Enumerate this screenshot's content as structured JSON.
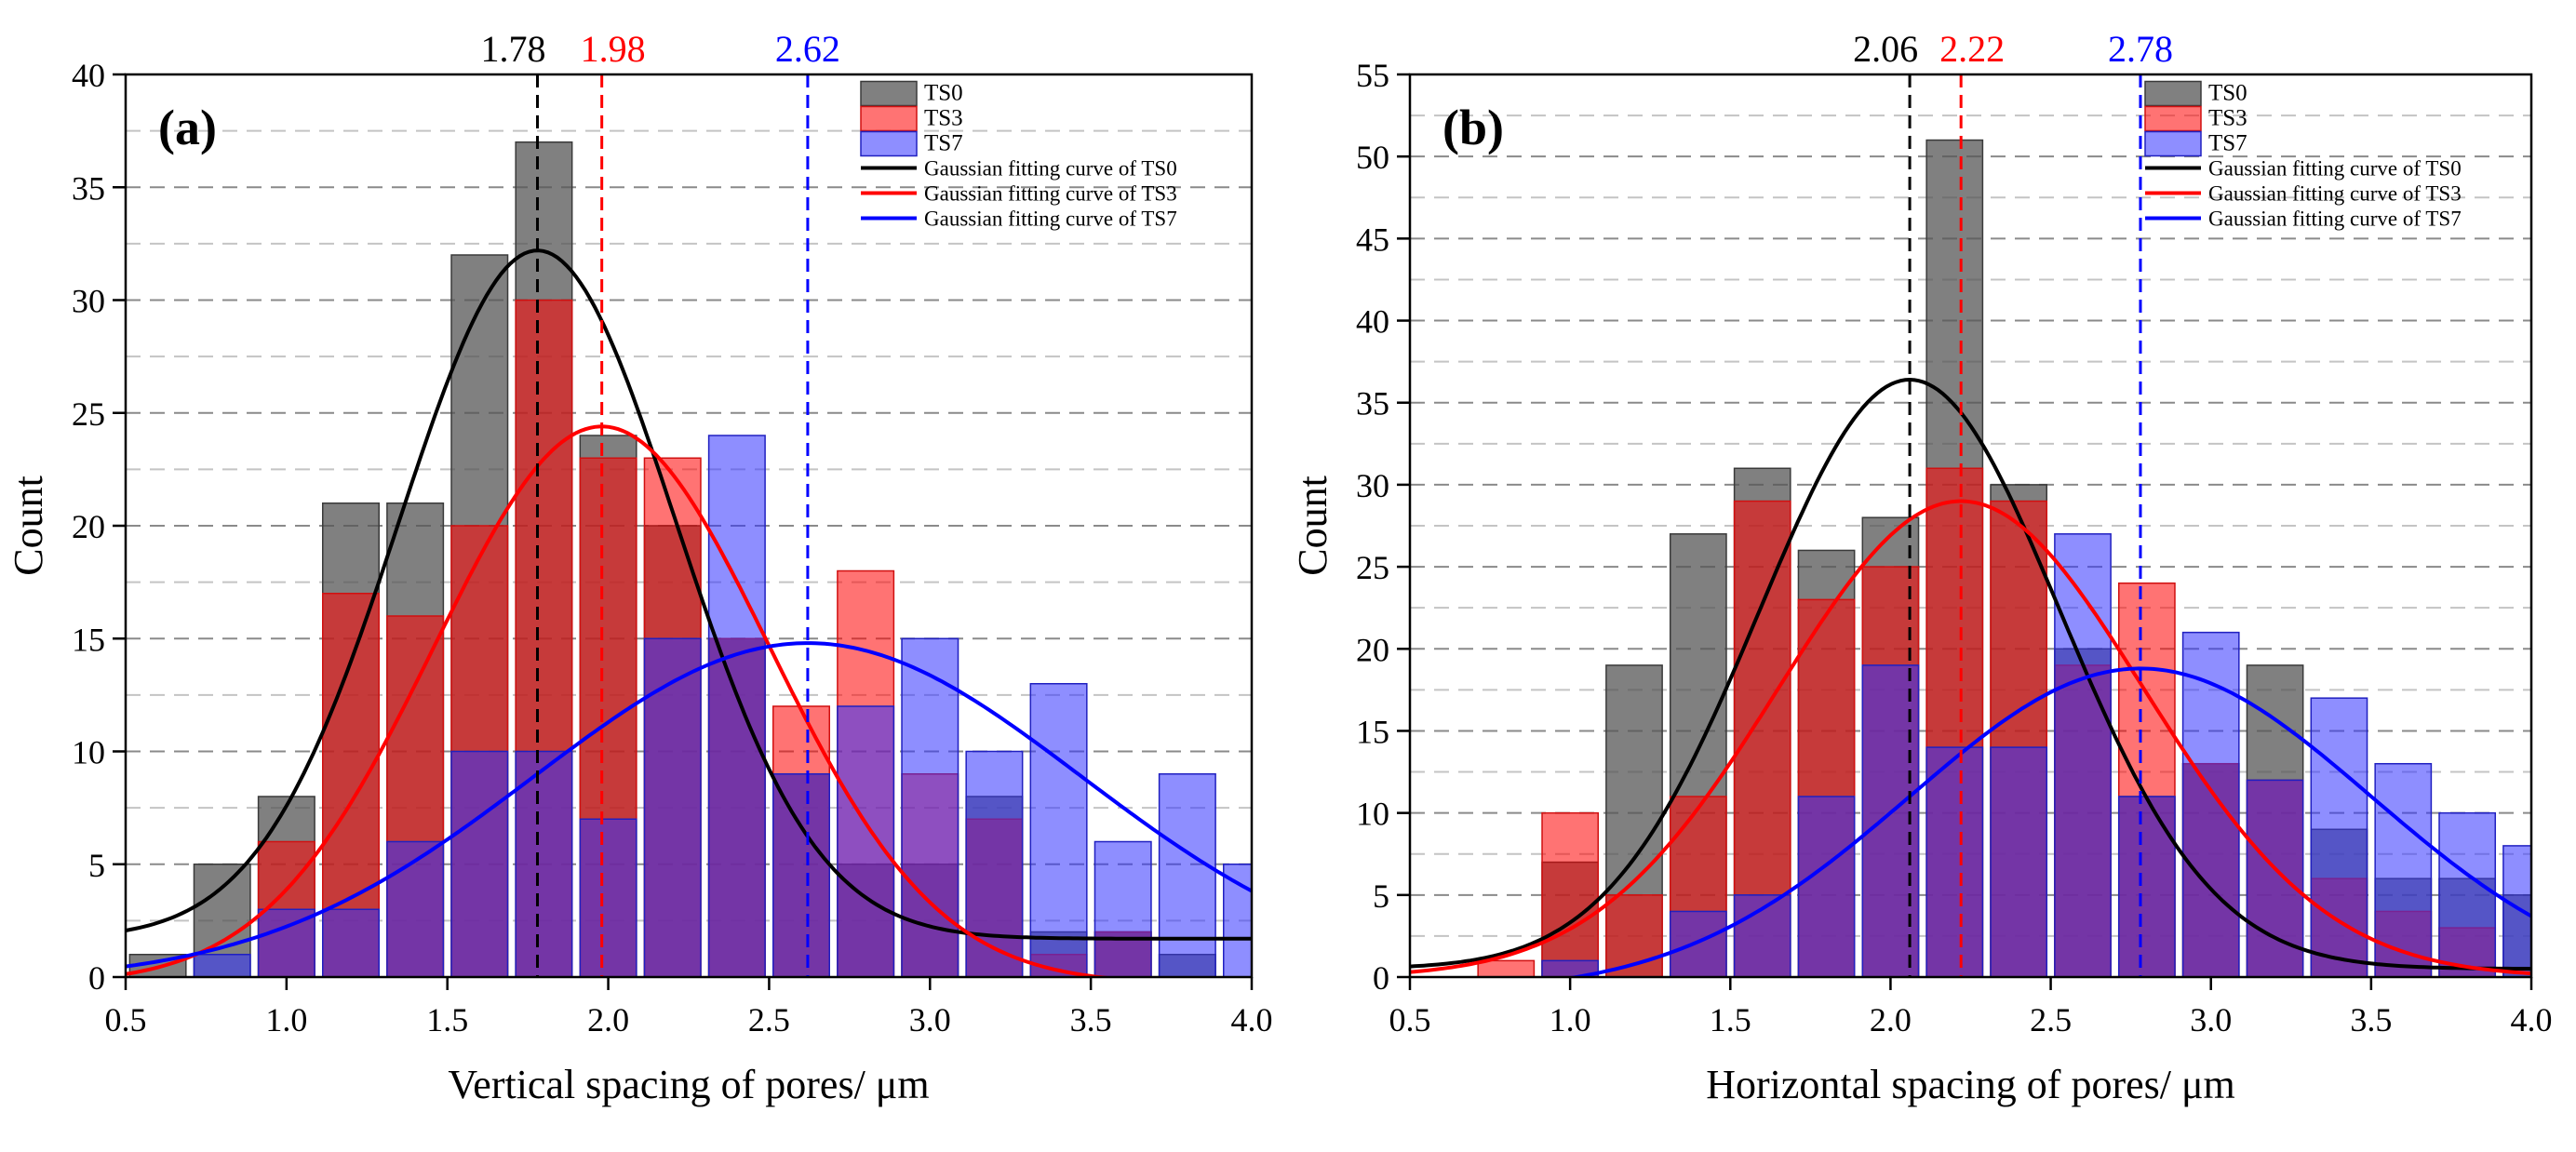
{
  "colors": {
    "TS0": "#555555",
    "TS3": "#ff3030",
    "TS7": "#4a4aff",
    "fit_TS0": "#000000",
    "fit_TS3": "#ff0000",
    "fit_TS7": "#0000ff"
  },
  "chart_data": [
    {
      "type": "bar",
      "panel_label": "(a)",
      "title": "",
      "xlabel": "Vertical spacing of pores/ μm",
      "ylabel": "Count",
      "xlim": [
        0.5,
        4.0
      ],
      "ylim": [
        0,
        40
      ],
      "x_ticks": [
        "0.5",
        "1.0",
        "1.5",
        "2.0",
        "2.5",
        "3.0",
        "3.5",
        "4.0"
      ],
      "y_ticks": [
        "0",
        "5",
        "10",
        "15",
        "20",
        "25",
        "30",
        "35",
        "40"
      ],
      "bin_centers": [
        0.6,
        0.8,
        1.0,
        1.2,
        1.4,
        1.6,
        1.8,
        2.0,
        2.2,
        2.4,
        2.6,
        2.8,
        3.0,
        3.2,
        3.4,
        3.6,
        3.8,
        4.0
      ],
      "series": [
        {
          "name": "TS0",
          "values": [
            1,
            5,
            8,
            21,
            21,
            32,
            37,
            24,
            20,
            15,
            9,
            5,
            5,
            8,
            2,
            2,
            1,
            0
          ]
        },
        {
          "name": "TS3",
          "values": [
            0,
            0,
            6,
            17,
            16,
            20,
            30,
            23,
            23,
            15,
            12,
            18,
            9,
            7,
            1,
            2,
            0,
            0
          ]
        },
        {
          "name": "TS7",
          "values": [
            0,
            1,
            3,
            3,
            6,
            10,
            10,
            7,
            15,
            24,
            9,
            12,
            15,
            10,
            13,
            6,
            9,
            5
          ]
        }
      ],
      "fits": [
        {
          "name": "Gaussian fitting curve of TS0",
          "mean": 1.78,
          "amplitude": 30.5,
          "sigma": 0.43,
          "offset": 1.7
        },
        {
          "name": "Gaussian fitting curve of TS3",
          "mean": 1.98,
          "amplitude": 24.7,
          "sigma": 0.52,
          "offset": -0.3
        },
        {
          "name": "Gaussian fitting curve of TS7",
          "mean": 2.62,
          "amplitude": 15.0,
          "sigma": 0.85,
          "offset": -0.2
        }
      ],
      "peak_lines": [
        {
          "label": "1.78",
          "x": 1.78,
          "series": "TS0"
        },
        {
          "label": "1.98",
          "x": 1.98,
          "series": "TS3"
        },
        {
          "label": "2.62",
          "x": 2.62,
          "series": "TS7"
        }
      ],
      "legend": {
        "position": "top-right",
        "entries": [
          "TS0",
          "TS3",
          "TS7",
          "Gaussian fitting curve of TS0",
          "Gaussian fitting curve of TS3",
          "Gaussian fitting curve of TS7"
        ]
      }
    },
    {
      "type": "bar",
      "panel_label": "(b)",
      "title": "",
      "xlabel": "Horizontal spacing of pores/ μm",
      "ylabel": "Count",
      "xlim": [
        0.5,
        4.0
      ],
      "ylim": [
        0,
        55
      ],
      "x_ticks": [
        "0.5",
        "1.0",
        "1.5",
        "2.0",
        "2.5",
        "3.0",
        "3.5",
        "4.0"
      ],
      "y_ticks": [
        "0",
        "5",
        "10",
        "15",
        "20",
        "25",
        "30",
        "35",
        "40",
        "45",
        "50",
        "55"
      ],
      "bin_centers": [
        0.6,
        0.8,
        1.0,
        1.2,
        1.4,
        1.6,
        1.8,
        2.0,
        2.2,
        2.4,
        2.6,
        2.8,
        3.0,
        3.2,
        3.4,
        3.6,
        3.8,
        4.0
      ],
      "series": [
        {
          "name": "TS0",
          "values": [
            0,
            0,
            7,
            19,
            27,
            31,
            26,
            28,
            51,
            30,
            20,
            11,
            13,
            19,
            9,
            6,
            6,
            5
          ]
        },
        {
          "name": "TS3",
          "values": [
            0,
            1,
            10,
            5,
            11,
            29,
            23,
            25,
            31,
            29,
            19,
            24,
            13,
            12,
            6,
            4,
            3,
            0
          ]
        },
        {
          "name": "TS7",
          "values": [
            0,
            0,
            1,
            0,
            4,
            5,
            11,
            19,
            14,
            14,
            27,
            11,
            21,
            12,
            17,
            13,
            10,
            8
          ]
        }
      ],
      "fits": [
        {
          "name": "Gaussian fitting curve of TS0",
          "mean": 2.06,
          "amplitude": 35.9,
          "sigma": 0.47,
          "offset": 0.5
        },
        {
          "name": "Gaussian fitting curve of TS3",
          "mean": 2.22,
          "amplitude": 29.0,
          "sigma": 0.57,
          "offset": 0.0
        },
        {
          "name": "Gaussian fitting curve of TS7",
          "mean": 2.78,
          "amplitude": 19.8,
          "sigma": 0.72,
          "offset": -1.0
        }
      ],
      "peak_lines": [
        {
          "label": "2.06",
          "x": 2.06,
          "series": "TS0"
        },
        {
          "label": "2.22",
          "x": 2.22,
          "series": "TS3"
        },
        {
          "label": "2.78",
          "x": 2.78,
          "series": "TS7"
        }
      ],
      "legend": {
        "position": "top-right",
        "entries": [
          "TS0",
          "TS3",
          "TS7",
          "Gaussian fitting curve of TS0",
          "Gaussian fitting curve of TS3",
          "Gaussian fitting curve of TS7"
        ]
      }
    }
  ]
}
